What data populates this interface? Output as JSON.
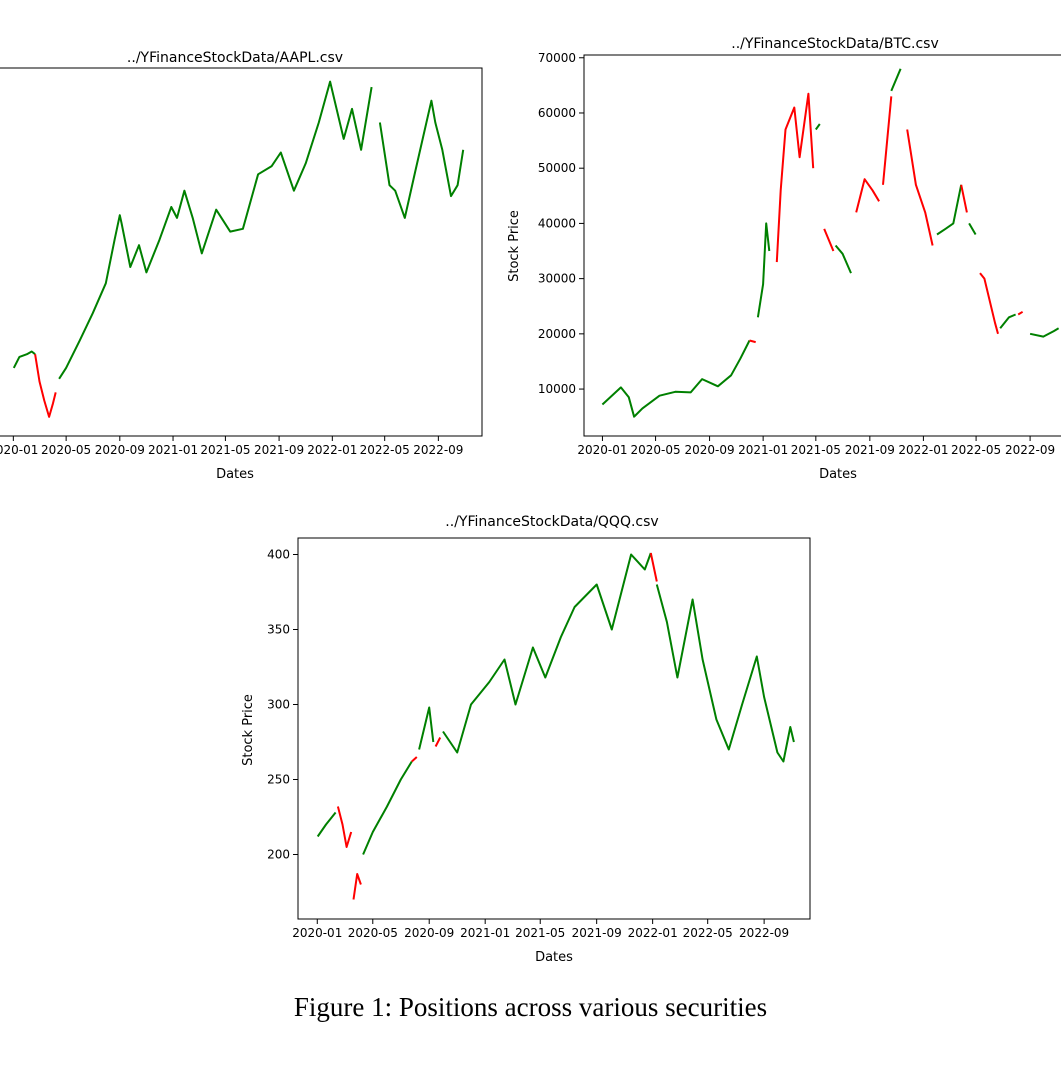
{
  "figure": {
    "caption": "Figure 1: Positions across various securities"
  },
  "chart_data": [
    {
      "type": "line",
      "title": "../YFinanceStockData/AAPL.csv",
      "xlabel": "Dates",
      "ylabel": "",
      "xticks": [
        "2020-01",
        "2020-05",
        "2020-09",
        "2021-01",
        "2021-05",
        "2021-09",
        "2022-01",
        "2022-05",
        "2022-09"
      ],
      "yticks": [],
      "xlim": [
        "2019-11-20",
        "2022-12-10"
      ],
      "ylim": [
        50,
        185
      ],
      "legend": "none",
      "grid": false,
      "colors": {
        "long": "#008000",
        "short": "#ff0000"
      },
      "series": [
        {
          "color": "green",
          "points": [
            [
              "2020-01-02",
              75
            ],
            [
              "2020-01-15",
              79
            ],
            [
              "2020-02-01",
              80
            ],
            [
              "2020-02-12",
              81
            ],
            [
              "2020-02-20",
              80
            ]
          ]
        },
        {
          "color": "red",
          "points": [
            [
              "2020-02-20",
              80
            ],
            [
              "2020-03-01",
              70
            ],
            [
              "2020-03-12",
              63
            ],
            [
              "2020-03-23",
              57
            ],
            [
              "2020-04-01",
              62
            ],
            [
              "2020-04-07",
              66
            ]
          ]
        },
        {
          "color": "green",
          "points": [
            [
              "2020-04-15",
              71
            ],
            [
              "2020-05-01",
              75
            ],
            [
              "2020-06-01",
              85
            ],
            [
              "2020-07-01",
              95
            ],
            [
              "2020-07-31",
              106
            ],
            [
              "2020-08-20",
              122
            ],
            [
              "2020-09-01",
              131
            ],
            [
              "2020-09-05",
              128
            ],
            [
              "2020-09-25",
              112
            ],
            [
              "2020-10-15",
              120
            ],
            [
              "2020-11-01",
              110
            ],
            [
              "2020-12-01",
              122
            ],
            [
              "2020-12-28",
              134
            ],
            [
              "2021-01-10",
              130
            ],
            [
              "2021-01-27",
              140
            ],
            [
              "2021-02-15",
              130
            ],
            [
              "2021-03-08",
              117
            ],
            [
              "2021-04-10",
              133
            ],
            [
              "2021-05-12",
              125
            ],
            [
              "2021-06-10",
              126
            ],
            [
              "2021-07-15",
              146
            ],
            [
              "2021-08-15",
              149
            ],
            [
              "2021-09-05",
              154
            ],
            [
              "2021-10-05",
              140
            ],
            [
              "2021-11-01",
              150
            ],
            [
              "2021-12-01",
              165
            ],
            [
              "2021-12-27",
              180
            ],
            [
              "2022-01-27",
              159
            ],
            [
              "2022-02-15",
              170
            ],
            [
              "2022-03-08",
              155
            ],
            [
              "2022-04-01",
              178
            ]
          ]
        },
        {
          "color": "green",
          "points": [
            [
              "2022-04-20",
              165
            ],
            [
              "2022-05-12",
              142
            ],
            [
              "2022-05-25",
              140
            ],
            [
              "2022-06-16",
              130
            ],
            [
              "2022-07-10",
              147
            ],
            [
              "2022-08-16",
              173
            ],
            [
              "2022-08-25",
              165
            ],
            [
              "2022-09-10",
              155
            ],
            [
              "2022-09-30",
              138
            ],
            [
              "2022-10-15",
              142
            ],
            [
              "2022-10-28",
              155
            ]
          ]
        }
      ]
    },
    {
      "type": "line",
      "title": "../YFinanceStockData/BTC.csv",
      "xlabel": "Dates",
      "ylabel": "Stock Price",
      "xticks": [
        "2020-01",
        "2020-05",
        "2020-09",
        "2021-01",
        "2021-05",
        "2021-09",
        "2022-01",
        "2022-05",
        "2022-09"
      ],
      "yticks": [
        "10000",
        "20000",
        "30000",
        "40000",
        "50000",
        "60000",
        "70000"
      ],
      "xlim": [
        "2019-11-20",
        "2022-12-10"
      ],
      "ylim": [
        1500,
        70500
      ],
      "legend": "none",
      "grid": false,
      "colors": {
        "long": "#008000",
        "short": "#ff0000"
      },
      "series": [
        {
          "color": "green",
          "points": [
            [
              "2020-01-01",
              7200
            ],
            [
              "2020-02-12",
              10300
            ],
            [
              "2020-03-01",
              8500
            ],
            [
              "2020-03-13",
              5000
            ],
            [
              "2020-04-01",
              6500
            ],
            [
              "2020-05-10",
              8800
            ],
            [
              "2020-06-15",
              9500
            ],
            [
              "2020-07-20",
              9400
            ],
            [
              "2020-08-15",
              11800
            ],
            [
              "2020-09-20",
              10500
            ],
            [
              "2020-10-20",
              12500
            ],
            [
              "2020-11-10",
              15500
            ],
            [
              "2020-12-01",
              18800
            ]
          ]
        },
        {
          "color": "red",
          "points": [
            [
              "2020-12-01",
              18800
            ],
            [
              "2020-12-15",
              18500
            ]
          ]
        },
        {
          "color": "green",
          "points": [
            [
              "2020-12-20",
              23000
            ],
            [
              "2021-01-01",
              29000
            ],
            [
              "2021-01-08",
              40000
            ],
            [
              "2021-01-15",
              35000
            ]
          ]
        },
        {
          "color": "red",
          "points": [
            [
              "2021-02-01",
              33000
            ],
            [
              "2021-02-10",
              46000
            ],
            [
              "2021-02-21",
              57000
            ],
            [
              "2021-03-13",
              61000
            ],
            [
              "2021-03-25",
              52000
            ],
            [
              "2021-04-14",
              63500
            ],
            [
              "2021-04-25",
              50000
            ]
          ]
        },
        {
          "color": "green",
          "points": [
            [
              "2021-05-01",
              57000
            ],
            [
              "2021-05-10",
              58000
            ]
          ]
        },
        {
          "color": "red",
          "points": [
            [
              "2021-05-20",
              39000
            ],
            [
              "2021-06-10",
              35000
            ]
          ]
        },
        {
          "color": "green",
          "points": [
            [
              "2021-06-15",
              36000
            ],
            [
              "2021-07-01",
              34500
            ],
            [
              "2021-07-20",
              31000
            ]
          ]
        },
        {
          "color": "red",
          "points": [
            [
              "2021-08-01",
              42000
            ],
            [
              "2021-08-20",
              48000
            ],
            [
              "2021-09-07",
              46000
            ],
            [
              "2021-09-22",
              44000
            ]
          ]
        },
        {
          "color": "red",
          "points": [
            [
              "2021-10-01",
              47000
            ],
            [
              "2021-10-20",
              63000
            ]
          ]
        },
        {
          "color": "green",
          "points": [
            [
              "2021-10-20",
              64000
            ],
            [
              "2021-11-10",
              68000
            ]
          ]
        },
        {
          "color": "red",
          "points": [
            [
              "2021-11-25",
              57000
            ],
            [
              "2021-12-15",
              47000
            ],
            [
              "2022-01-05",
              42000
            ],
            [
              "2022-01-22",
              36000
            ]
          ]
        },
        {
          "color": "green",
          "points": [
            [
              "2022-02-01",
              38000
            ],
            [
              "2022-02-20",
              39000
            ],
            [
              "2022-03-10",
              40000
            ],
            [
              "2022-03-28",
              47000
            ]
          ]
        },
        {
          "color": "red",
          "points": [
            [
              "2022-03-28",
              47000
            ],
            [
              "2022-04-10",
              42000
            ]
          ]
        },
        {
          "color": "green",
          "points": [
            [
              "2022-04-15",
              40000
            ],
            [
              "2022-04-30",
              38000
            ]
          ]
        },
        {
          "color": "red",
          "points": [
            [
              "2022-05-10",
              31000
            ],
            [
              "2022-05-20",
              30000
            ],
            [
              "2022-06-13",
              22000
            ],
            [
              "2022-06-20",
              20000
            ]
          ]
        },
        {
          "color": "green",
          "points": [
            [
              "2022-06-25",
              21000
            ],
            [
              "2022-07-15",
              23000
            ],
            [
              "2022-07-30",
              23500
            ]
          ]
        },
        {
          "color": "red",
          "points": [
            [
              "2022-08-05",
              23500
            ],
            [
              "2022-08-15",
              24000
            ]
          ]
        },
        {
          "color": "green",
          "points": [
            [
              "2022-09-01",
              20000
            ],
            [
              "2022-10-01",
              19500
            ],
            [
              "2022-10-25",
              20500
            ],
            [
              "2022-11-05",
              21000
            ]
          ]
        }
      ]
    },
    {
      "type": "line",
      "title": "../YFinanceStockData/QQQ.csv",
      "xlabel": "Dates",
      "ylabel": "Stock Price",
      "xticks": [
        "2020-01",
        "2020-05",
        "2020-09",
        "2021-01",
        "2021-05",
        "2021-09",
        "2022-01",
        "2022-05",
        "2022-09"
      ],
      "yticks": [
        "200",
        "250",
        "300",
        "350",
        "400"
      ],
      "xlim": [
        "2019-11-20",
        "2022-12-10"
      ],
      "ylim": [
        157,
        411
      ],
      "legend": "none",
      "grid": false,
      "colors": {
        "long": "#008000",
        "short": "#ff0000"
      },
      "series": [
        {
          "color": "green",
          "points": [
            [
              "2020-01-02",
              212
            ],
            [
              "2020-01-20",
              220
            ],
            [
              "2020-02-10",
              228
            ]
          ]
        },
        {
          "color": "red",
          "points": [
            [
              "2020-02-15",
              232
            ],
            [
              "2020-02-25",
              220
            ],
            [
              "2020-03-05",
              205
            ],
            [
              "2020-03-15",
              215
            ]
          ]
        },
        {
          "color": "red",
          "points": [
            [
              "2020-03-20",
              170
            ],
            [
              "2020-03-28",
              187
            ],
            [
              "2020-04-05",
              180
            ]
          ]
        },
        {
          "color": "green",
          "points": [
            [
              "2020-04-10",
              200
            ],
            [
              "2020-05-01",
              215
            ],
            [
              "2020-06-01",
              232
            ],
            [
              "2020-07-01",
              250
            ],
            [
              "2020-07-25",
              262
            ]
          ]
        },
        {
          "color": "red",
          "points": [
            [
              "2020-07-25",
              262
            ],
            [
              "2020-08-05",
              265
            ]
          ]
        },
        {
          "color": "green",
          "points": [
            [
              "2020-08-10",
              270
            ],
            [
              "2020-09-01",
              298
            ],
            [
              "2020-09-10",
              275
            ]
          ]
        },
        {
          "color": "red",
          "points": [
            [
              "2020-09-15",
              272
            ],
            [
              "2020-09-25",
              278
            ]
          ]
        },
        {
          "color": "green",
          "points": [
            [
              "2020-10-01",
              282
            ],
            [
              "2020-11-01",
              268
            ],
            [
              "2020-12-01",
              300
            ],
            [
              "2021-01-10",
              315
            ],
            [
              "2021-02-12",
              330
            ],
            [
              "2021-03-08",
              300
            ],
            [
              "2021-04-15",
              338
            ],
            [
              "2021-05-12",
              318
            ],
            [
              "2021-06-15",
              345
            ],
            [
              "2021-07-15",
              365
            ],
            [
              "2021-09-01",
              380
            ],
            [
              "2021-10-04",
              350
            ],
            [
              "2021-11-15",
              400
            ],
            [
              "2021-12-15",
              390
            ],
            [
              "2021-12-28",
              401
            ]
          ]
        },
        {
          "color": "red",
          "points": [
            [
              "2021-12-28",
              401
            ],
            [
              "2022-01-10",
              382
            ]
          ]
        },
        {
          "color": "green",
          "points": [
            [
              "2022-01-10",
              380
            ],
            [
              "2022-02-01",
              355
            ],
            [
              "2022-02-24",
              318
            ],
            [
              "2022-03-29",
              370
            ],
            [
              "2022-04-20",
              330
            ],
            [
              "2022-05-20",
              290
            ],
            [
              "2022-06-16",
              270
            ],
            [
              "2022-07-15",
              300
            ],
            [
              "2022-08-16",
              332
            ],
            [
              "2022-09-01",
              305
            ],
            [
              "2022-09-30",
              268
            ],
            [
              "2022-10-13",
              262
            ],
            [
              "2022-10-28",
              285
            ],
            [
              "2022-11-05",
              275
            ]
          ]
        }
      ]
    }
  ]
}
